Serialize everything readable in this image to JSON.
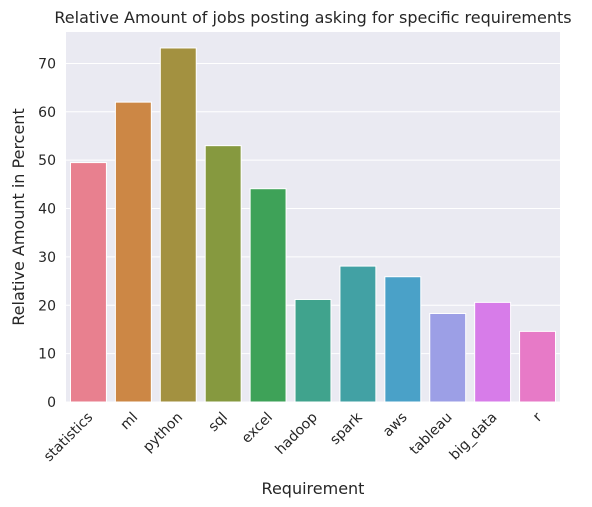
{
  "chart_data": {
    "type": "bar",
    "title": "Relative Amount of jobs posting asking for specific requirements",
    "xlabel": "Requirement",
    "ylabel": "Relative Amount in Percent",
    "ylim": [
      0,
      76.5
    ],
    "yticks": [
      0,
      10,
      20,
      30,
      40,
      50,
      60,
      70
    ],
    "grid": true,
    "categories": [
      "statistics",
      "ml",
      "python",
      "sql",
      "excel",
      "hadoop",
      "spark",
      "aws",
      "tableau",
      "big_data",
      "r"
    ],
    "values": [
      49.5,
      62.0,
      73.2,
      53.0,
      44.1,
      21.2,
      28.1,
      25.9,
      18.3,
      20.6,
      14.6
    ],
    "colors": [
      "#e8808f",
      "#cc8745",
      "#a39140",
      "#86993f",
      "#3ea258",
      "#40a38d",
      "#42a1a4",
      "#4aa1c8",
      "#9c9fe6",
      "#d77ce9",
      "#e77ac7"
    ]
  }
}
